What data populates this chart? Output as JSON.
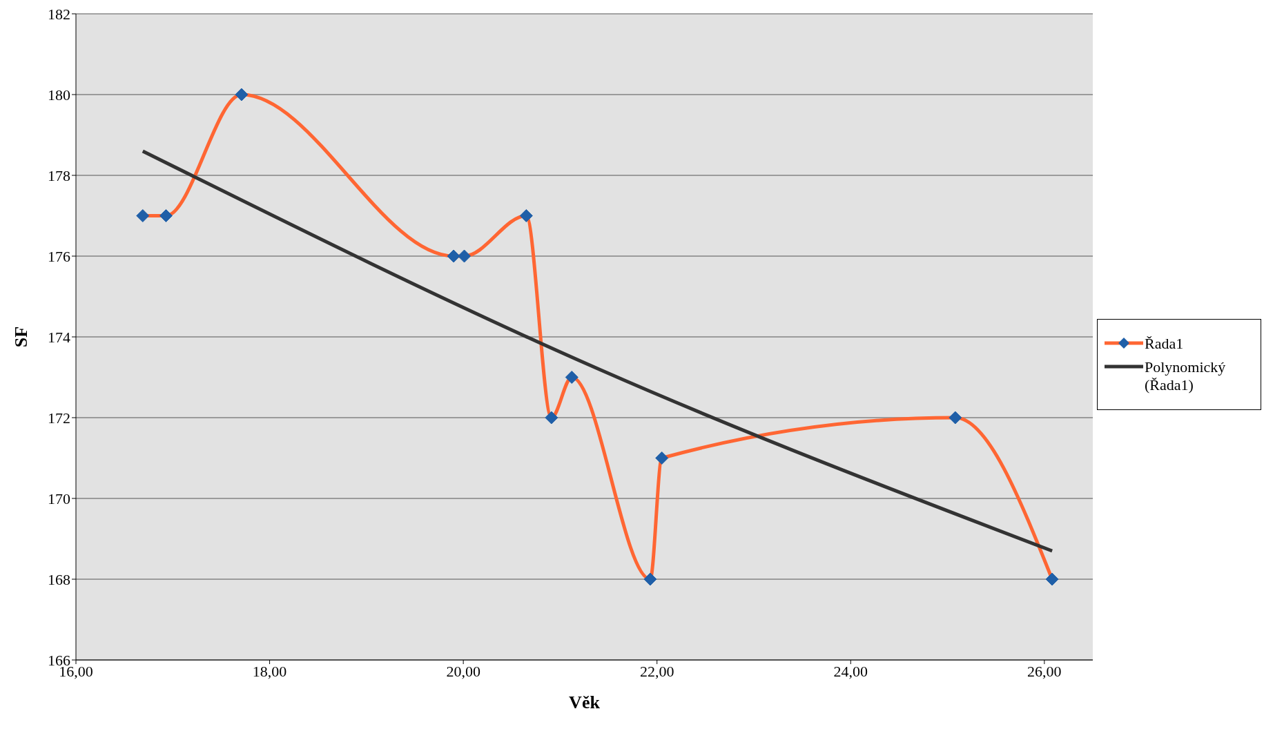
{
  "chart_data": {
    "type": "line",
    "xlabel": "Věk",
    "ylabel": "SF",
    "xlim": [
      16,
      26.5
    ],
    "xticks": [
      {
        "value": 16,
        "label": "16,00"
      },
      {
        "value": 18,
        "label": "18,00"
      },
      {
        "value": 20,
        "label": "20,00"
      },
      {
        "value": 22,
        "label": "22,00"
      },
      {
        "value": 24,
        "label": "24,00"
      },
      {
        "value": 26,
        "label": "26,00"
      }
    ],
    "ylim": [
      166,
      182
    ],
    "yticks": [
      166,
      168,
      170,
      172,
      174,
      176,
      178,
      180,
      182
    ],
    "grid": "y",
    "legend": "right",
    "series": [
      {
        "name": "Řada1",
        "color": "#ff6633",
        "marker": "diamond",
        "colors": [
          "#1f5fa8",
          "#1f5fa8",
          "#1f5fa8",
          "#1f5fa8",
          "#1f5fa8",
          "#1f5fa8",
          "#1f5fa8",
          "#1f5fa8",
          "#1f5fa8",
          "#1f5fa8",
          "#1f5fa8",
          "#1f5fa8"
        ],
        "x": [
          16.69,
          16.93,
          17.71,
          19.9,
          20.01,
          20.65,
          20.91,
          21.12,
          21.93,
          22.05,
          25.08,
          26.08
        ],
        "values": [
          177,
          177,
          180,
          176,
          176,
          177,
          172,
          173,
          168,
          171,
          172,
          168
        ]
      },
      {
        "name": "Polynomický (Řada1)",
        "color": "#333333",
        "marker": "none",
        "x": [
          16.69,
          21.4,
          26.08
        ],
        "values": [
          178.6,
          173.2,
          168.7
        ]
      }
    ]
  }
}
